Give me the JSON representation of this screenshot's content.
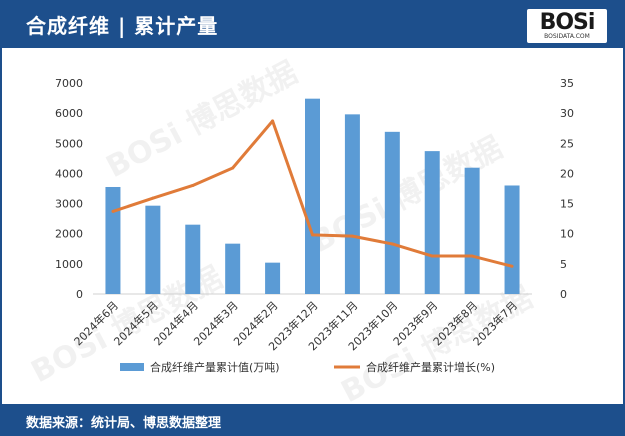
{
  "header": {
    "title": "合成纤维 | 累计产量",
    "logo_text": "BOSi",
    "logo_sub": "BOSIDATA.COM"
  },
  "footer": {
    "source": "数据来源：统计局、博思数据整理"
  },
  "colors": {
    "header_bg": "#1d4f8c",
    "bar": "#5b9bd5",
    "line": "#e07b39"
  },
  "chart_data": {
    "type": "bar",
    "categories": [
      "2024年6月",
      "2024年5月",
      "2024年4月",
      "2024年3月",
      "2024年2月",
      "2023年12月",
      "2023年11月",
      "2023年10月",
      "2023年9月",
      "2023年8月",
      "2023年7月"
    ],
    "series": [
      {
        "name": "合成纤维产量累计值(万吨)",
        "type": "bar",
        "axis": "left",
        "values": [
          3550,
          2930,
          2300,
          1670,
          1040,
          6480,
          5960,
          5380,
          4740,
          4190,
          3600
        ]
      },
      {
        "name": "合成纤维产量累计增长(%)",
        "type": "line",
        "axis": "right",
        "values": [
          13.7,
          15.9,
          18.0,
          20.9,
          28.7,
          9.8,
          9.6,
          8.3,
          6.3,
          6.3,
          4.6
        ]
      }
    ],
    "y_left": {
      "min": 0,
      "max": 7000,
      "ticks": [
        0,
        1000,
        2000,
        3000,
        4000,
        5000,
        6000,
        7000
      ]
    },
    "y_right": {
      "min": 0,
      "max": 35,
      "ticks": [
        0,
        5,
        10,
        15,
        20,
        25,
        30,
        35
      ]
    },
    "legend_position": "bottom",
    "grid": false
  }
}
